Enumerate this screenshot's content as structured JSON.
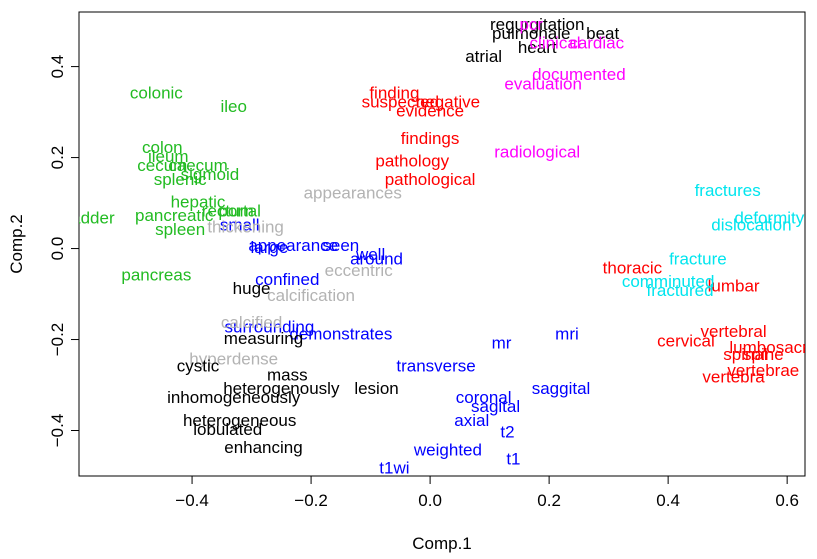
{
  "chart_data": {
    "type": "scatter",
    "title": "",
    "xlabel": "Comp.1",
    "ylabel": "Comp.2",
    "xlim": [
      -0.59,
      0.63
    ],
    "ylim": [
      -0.5,
      0.52
    ],
    "xticks": [
      -0.4,
      -0.2,
      0.0,
      0.2,
      0.4,
      0.6
    ],
    "xtick_labels": [
      "−0.4",
      "−0.2",
      "0.0",
      "0.2",
      "0.4",
      "0.6"
    ],
    "yticks": [
      -0.4,
      -0.2,
      0.0,
      0.2,
      0.4
    ],
    "ytick_labels": [
      "−0.4",
      "−0.2",
      "0.0",
      "0.2",
      "0.4"
    ],
    "grid": false,
    "colors": {
      "green": "#22bb22",
      "red": "#ff0000",
      "magenta": "#ff00ff",
      "cyan": "#00e5ee",
      "blue": "#0000ff",
      "black": "#000000",
      "gray": "#b3b3b3"
    },
    "points": [
      {
        "label": "regurgitation",
        "x": 0.18,
        "y": 0.49,
        "color": "black"
      },
      {
        "label": "pulmonale",
        "x": 0.17,
        "y": 0.47,
        "color": "black"
      },
      {
        "label": "beat",
        "x": 0.29,
        "y": 0.47,
        "color": "black"
      },
      {
        "label": "heart",
        "x": 0.18,
        "y": 0.44,
        "color": "black"
      },
      {
        "label": "atrial",
        "x": 0.09,
        "y": 0.42,
        "color": "black"
      },
      {
        "label": "pcr",
        "x": 0.17,
        "y": 0.49,
        "color": "magenta"
      },
      {
        "label": "clinical",
        "x": 0.21,
        "y": 0.45,
        "color": "magenta"
      },
      {
        "label": "cardiac",
        "x": 0.28,
        "y": 0.45,
        "color": "magenta"
      },
      {
        "label": "documented",
        "x": 0.25,
        "y": 0.38,
        "color": "magenta"
      },
      {
        "label": "evaluation",
        "x": 0.19,
        "y": 0.36,
        "color": "magenta"
      },
      {
        "label": "radiological",
        "x": 0.18,
        "y": 0.21,
        "color": "magenta"
      },
      {
        "label": "colonic",
        "x": -0.46,
        "y": 0.34,
        "color": "green"
      },
      {
        "label": "ileo",
        "x": -0.33,
        "y": 0.31,
        "color": "green"
      },
      {
        "label": "colon",
        "x": -0.45,
        "y": 0.22,
        "color": "green"
      },
      {
        "label": "ileum",
        "x": -0.44,
        "y": 0.2,
        "color": "green"
      },
      {
        "label": "cecum",
        "x": -0.45,
        "y": 0.18,
        "color": "green"
      },
      {
        "label": "caecum",
        "x": -0.39,
        "y": 0.18,
        "color": "green"
      },
      {
        "label": "sigmoid",
        "x": -0.37,
        "y": 0.16,
        "color": "green"
      },
      {
        "label": "splenic",
        "x": -0.42,
        "y": 0.15,
        "color": "green"
      },
      {
        "label": "hepatic",
        "x": -0.39,
        "y": 0.1,
        "color": "green"
      },
      {
        "label": "pancreatic",
        "x": -0.43,
        "y": 0.07,
        "color": "green"
      },
      {
        "label": "rectum",
        "x": -0.34,
        "y": 0.08,
        "color": "green"
      },
      {
        "label": "portal",
        "x": -0.32,
        "y": 0.08,
        "color": "green"
      },
      {
        "label": "gallbladder",
        "x": -0.6,
        "y": 0.065,
        "color": "green"
      },
      {
        "label": "spleen",
        "x": -0.42,
        "y": 0.04,
        "color": "green"
      },
      {
        "label": "pancreas",
        "x": -0.46,
        "y": -0.06,
        "color": "green"
      },
      {
        "label": "finding",
        "x": -0.06,
        "y": 0.34,
        "color": "red"
      },
      {
        "label": "suspected",
        "x": -0.05,
        "y": 0.32,
        "color": "red"
      },
      {
        "label": "negative",
        "x": 0.03,
        "y": 0.32,
        "color": "red"
      },
      {
        "label": "evidence",
        "x": 0.0,
        "y": 0.3,
        "color": "red"
      },
      {
        "label": "findings",
        "x": 0.0,
        "y": 0.24,
        "color": "red"
      },
      {
        "label": "pathology",
        "x": -0.03,
        "y": 0.19,
        "color": "red"
      },
      {
        "label": "pathological",
        "x": 0.0,
        "y": 0.15,
        "color": "red"
      },
      {
        "label": "thoracic",
        "x": 0.34,
        "y": -0.045,
        "color": "red"
      },
      {
        "label": "lumbar",
        "x": 0.51,
        "y": -0.085,
        "color": "red"
      },
      {
        "label": "vertebral",
        "x": 0.51,
        "y": -0.185,
        "color": "red"
      },
      {
        "label": "cervical",
        "x": 0.43,
        "y": -0.205,
        "color": "red"
      },
      {
        "label": "lumbosacral",
        "x": 0.58,
        "y": -0.22,
        "color": "red"
      },
      {
        "label": "spinal",
        "x": 0.53,
        "y": -0.235,
        "color": "red"
      },
      {
        "label": "spine",
        "x": 0.56,
        "y": -0.235,
        "color": "red"
      },
      {
        "label": "vertebrae",
        "x": 0.56,
        "y": -0.27,
        "color": "red"
      },
      {
        "label": "vertebra",
        "x": 0.51,
        "y": -0.285,
        "color": "red"
      },
      {
        "label": "fractures",
        "x": 0.5,
        "y": 0.125,
        "color": "cyan"
      },
      {
        "label": "deformity",
        "x": 0.57,
        "y": 0.065,
        "color": "cyan"
      },
      {
        "label": "dislocation",
        "x": 0.54,
        "y": 0.05,
        "color": "cyan"
      },
      {
        "label": "fracture",
        "x": 0.45,
        "y": -0.025,
        "color": "cyan"
      },
      {
        "label": "comminuted",
        "x": 0.4,
        "y": -0.075,
        "color": "cyan"
      },
      {
        "label": "fractured",
        "x": 0.42,
        "y": -0.095,
        "color": "cyan"
      },
      {
        "label": "small",
        "x": -0.32,
        "y": 0.05,
        "color": "blue"
      },
      {
        "label": "large",
        "x": -0.27,
        "y": 0.0,
        "color": "blue"
      },
      {
        "label": "appearance",
        "x": -0.23,
        "y": 0.005,
        "color": "blue"
      },
      {
        "label": "seen",
        "x": -0.15,
        "y": 0.005,
        "color": "blue"
      },
      {
        "label": "well",
        "x": -0.1,
        "y": -0.015,
        "color": "blue"
      },
      {
        "label": "around",
        "x": -0.09,
        "y": -0.025,
        "color": "blue"
      },
      {
        "label": "confined",
        "x": -0.24,
        "y": -0.07,
        "color": "blue"
      },
      {
        "label": "surrounding",
        "x": -0.27,
        "y": -0.175,
        "color": "blue"
      },
      {
        "label": "demonstrates",
        "x": -0.15,
        "y": -0.19,
        "color": "blue"
      },
      {
        "label": "mr",
        "x": 0.12,
        "y": -0.21,
        "color": "blue"
      },
      {
        "label": "mri",
        "x": 0.23,
        "y": -0.19,
        "color": "blue"
      },
      {
        "label": "transverse",
        "x": 0.01,
        "y": -0.26,
        "color": "blue"
      },
      {
        "label": "saggital",
        "x": 0.22,
        "y": -0.31,
        "color": "blue"
      },
      {
        "label": "coronal",
        "x": 0.09,
        "y": -0.33,
        "color": "blue"
      },
      {
        "label": "sagital",
        "x": 0.11,
        "y": -0.35,
        "color": "blue"
      },
      {
        "label": "axial",
        "x": 0.07,
        "y": -0.38,
        "color": "blue"
      },
      {
        "label": "t2",
        "x": 0.13,
        "y": -0.405,
        "color": "blue"
      },
      {
        "label": "weighted",
        "x": 0.03,
        "y": -0.445,
        "color": "blue"
      },
      {
        "label": "t1",
        "x": 0.14,
        "y": -0.465,
        "color": "blue"
      },
      {
        "label": "t1wi",
        "x": -0.06,
        "y": -0.485,
        "color": "blue"
      },
      {
        "label": "appearances",
        "x": -0.13,
        "y": 0.12,
        "color": "gray"
      },
      {
        "label": "thickening",
        "x": -0.31,
        "y": 0.045,
        "color": "gray"
      },
      {
        "label": "eccentric",
        "x": -0.12,
        "y": -0.05,
        "color": "gray"
      },
      {
        "label": "calcification",
        "x": -0.2,
        "y": -0.105,
        "color": "gray"
      },
      {
        "label": "calcified",
        "x": -0.3,
        "y": -0.165,
        "color": "gray"
      },
      {
        "label": "hyperdense",
        "x": -0.33,
        "y": -0.245,
        "color": "gray"
      },
      {
        "label": "huge",
        "x": -0.3,
        "y": -0.09,
        "color": "black"
      },
      {
        "label": "measuring",
        "x": -0.28,
        "y": -0.2,
        "color": "black"
      },
      {
        "label": "cystic",
        "x": -0.39,
        "y": -0.26,
        "color": "black"
      },
      {
        "label": "mass",
        "x": -0.24,
        "y": -0.28,
        "color": "black"
      },
      {
        "label": "heterogenously",
        "x": -0.25,
        "y": -0.31,
        "color": "black"
      },
      {
        "label": "lesion",
        "x": -0.09,
        "y": -0.31,
        "color": "black"
      },
      {
        "label": "inhomogeneously",
        "x": -0.33,
        "y": -0.33,
        "color": "black"
      },
      {
        "label": "heterogeneous",
        "x": -0.32,
        "y": -0.38,
        "color": "black"
      },
      {
        "label": "lobulated",
        "x": -0.34,
        "y": -0.4,
        "color": "black"
      },
      {
        "label": "enhancing",
        "x": -0.28,
        "y": -0.44,
        "color": "black"
      }
    ]
  }
}
